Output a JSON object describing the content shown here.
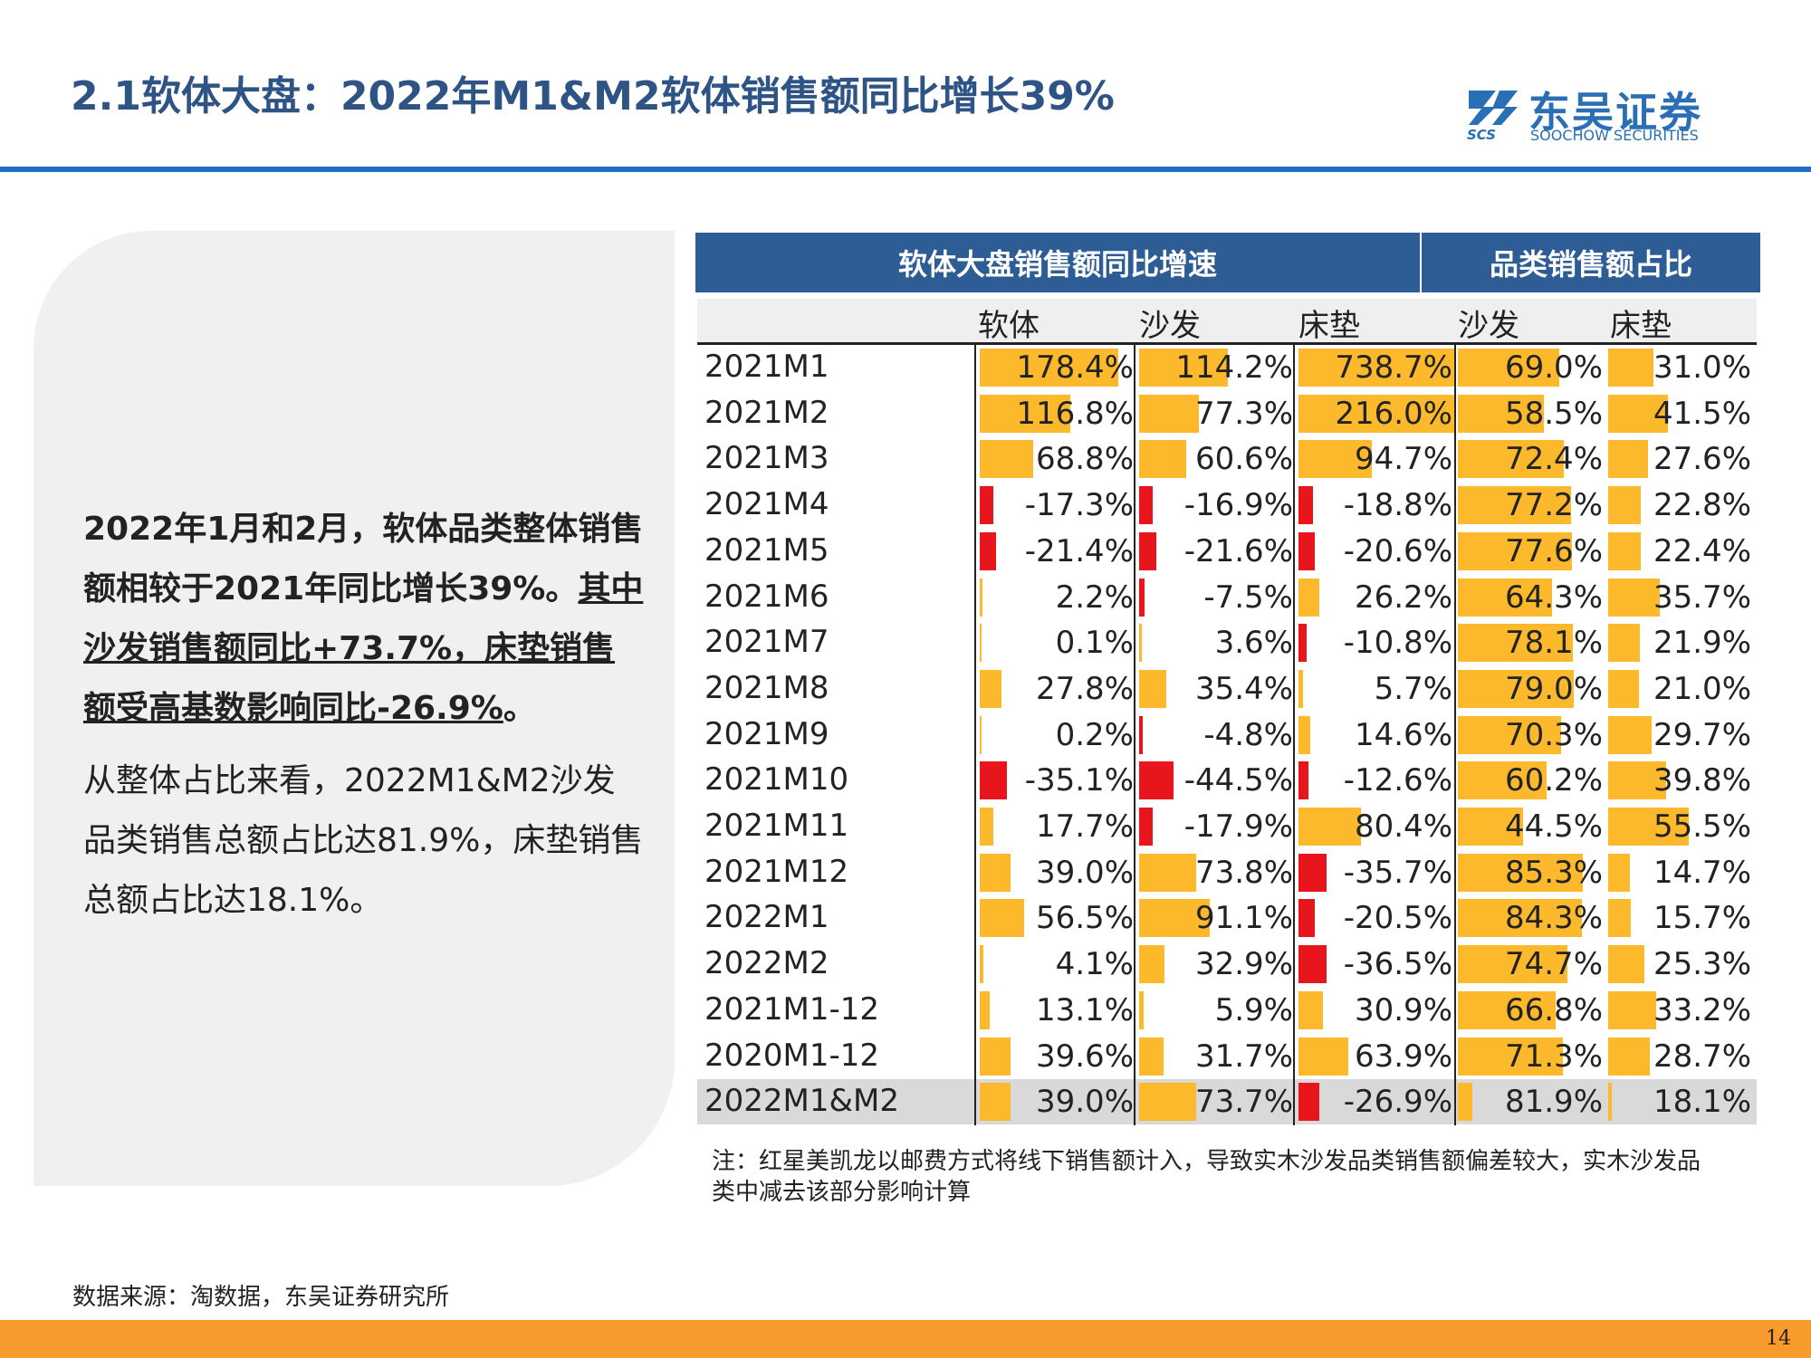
{
  "title": "2.1软体大盘：2022年M1&M2软体销售额同比增长39%",
  "logo": {
    "cn": "东吴证券",
    "en": "SOOCHOW SECURITIES",
    "abbr": "SCS"
  },
  "left_panel": {
    "p1_part1": "2022年1月和2月，软体品类整体销售额相较于2021年同比增长39%。",
    "p1_part2": "其中沙发销售额同比+73.7%，床垫销售额受高基数影响同比-26.9%",
    "p1_end": "。",
    "p2": "从整体占比来看，2022M1&M2沙发品类销售总额占比达81.9%，床垫销售总额占比达18.1%。"
  },
  "note": "注：红星美凯龙以邮费方式将线下销售额计入，导致实木沙发品类销售额偏差较大，实木沙发品类中减去该部分影响计算",
  "source": "数据来源：淘数据，东吴证券研究所",
  "page_number": "14",
  "colors": {
    "positive": "#fdb92c",
    "negative": "#e8161c",
    "header": "#2e5d96",
    "title": "#2e5385",
    "footer": "#f89a2c"
  },
  "chart_data": {
    "type": "table",
    "group_headers": [
      "软体大盘销售额同比增速",
      "品类销售额占比"
    ],
    "columns": [
      "软体",
      "沙发",
      "床垫",
      "沙发",
      "床垫"
    ],
    "rows": [
      {
        "label": "2021M1",
        "values": [
          "178.4%",
          "114.2%",
          "738.7%",
          "69.0%",
          "31.0%"
        ]
      },
      {
        "label": "2021M2",
        "values": [
          "116.8%",
          "77.3%",
          "216.0%",
          "58.5%",
          "41.5%"
        ]
      },
      {
        "label": "2021M3",
        "values": [
          "68.8%",
          "60.6%",
          "94.7%",
          "72.4%",
          "27.6%"
        ]
      },
      {
        "label": "2021M4",
        "values": [
          "-17.3%",
          "-16.9%",
          "-18.8%",
          "77.2%",
          "22.8%"
        ]
      },
      {
        "label": "2021M5",
        "values": [
          "-21.4%",
          "-21.6%",
          "-20.6%",
          "77.6%",
          "22.4%"
        ]
      },
      {
        "label": "2021M6",
        "values": [
          "2.2%",
          "-7.5%",
          "26.2%",
          "64.3%",
          "35.7%"
        ]
      },
      {
        "label": "2021M7",
        "values": [
          "0.1%",
          "3.6%",
          "-10.8%",
          "78.1%",
          "21.9%"
        ]
      },
      {
        "label": "2021M8",
        "values": [
          "27.8%",
          "35.4%",
          "5.7%",
          "79.0%",
          "21.0%"
        ]
      },
      {
        "label": "2021M9",
        "values": [
          "0.2%",
          "-4.8%",
          "14.6%",
          "70.3%",
          "29.7%"
        ]
      },
      {
        "label": "2021M10",
        "values": [
          "-35.1%",
          "-44.5%",
          "-12.6%",
          "60.2%",
          "39.8%"
        ]
      },
      {
        "label": "2021M11",
        "values": [
          "17.7%",
          "-17.9%",
          "80.4%",
          "44.5%",
          "55.5%"
        ]
      },
      {
        "label": "2021M12",
        "values": [
          "39.0%",
          "73.8%",
          "-35.7%",
          "85.3%",
          "14.7%"
        ]
      },
      {
        "label": "2022M1",
        "values": [
          "56.5%",
          "91.1%",
          "-20.5%",
          "84.3%",
          "15.7%"
        ]
      },
      {
        "label": "2022M2",
        "values": [
          "4.1%",
          "32.9%",
          "-36.5%",
          "74.7%",
          "25.3%"
        ]
      },
      {
        "label": "2021M1-12",
        "values": [
          "13.1%",
          "5.9%",
          "30.9%",
          "66.8%",
          "33.2%"
        ]
      },
      {
        "label": "2020M1-12",
        "values": [
          "39.6%",
          "31.7%",
          "63.9%",
          "71.3%",
          "28.7%"
        ]
      },
      {
        "label": "2022M1&M2",
        "values": [
          "39.0%",
          "73.7%",
          "-26.9%",
          "81.9%",
          "18.1%"
        ]
      }
    ]
  }
}
